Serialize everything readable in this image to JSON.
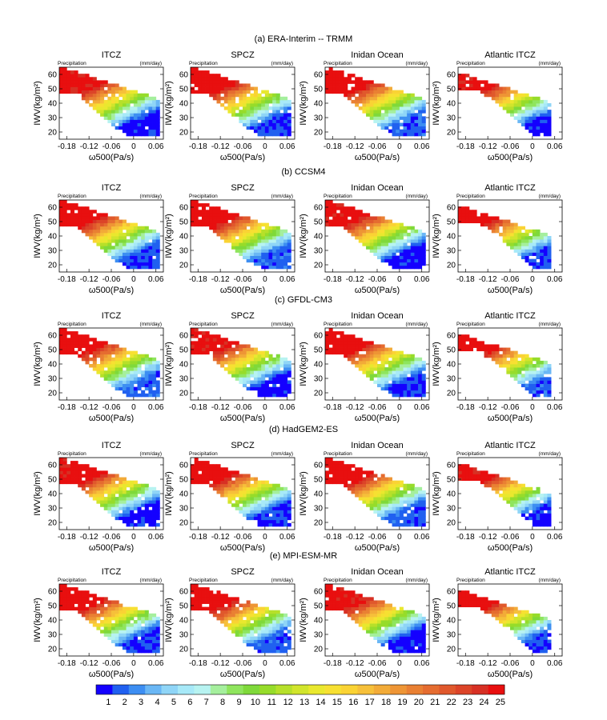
{
  "figure": {
    "panel_title": "ITCZ",
    "regions": [
      "ITCZ",
      "SPCZ",
      "Inidan Ocean",
      "Atlantic ITCZ"
    ],
    "precip_label": "Precipitation",
    "unit_label": "(mm/day)",
    "ylabel": "IWV(kg/m²)",
    "xlabel": "ω500(Pa/s)"
  },
  "chart_data": {
    "type": "heatmap",
    "rows": [
      {
        "title": "(a) ERA-Interim -- TRMM",
        "y_ticks": [
          "20",
          "30",
          "40",
          "50",
          "60"
        ]
      },
      {
        "title": "(b) CCSM4",
        "y_ticks": [
          "20",
          "30",
          "40",
          "50",
          "60"
        ]
      },
      {
        "title": "(c) GFDL-CM3",
        "y_ticks": [
          "20",
          "30",
          "40",
          "50",
          "60"
        ]
      },
      {
        "title": "(d) HadGEM2-ES",
        "y_ticks": [
          "20",
          "30",
          "40",
          "50",
          "60"
        ]
      },
      {
        "title": "(e) MPI-ESM-MR",
        "y_ticks": [
          "20",
          "30",
          "40",
          "50",
          "60"
        ]
      }
    ],
    "x_ticks": [
      "-0.18",
      "-0.12",
      "-0.06",
      "0",
      "0.06"
    ],
    "x_tick_values": [
      -0.18,
      -0.12,
      -0.06,
      0,
      0.06
    ],
    "xlim": [
      -0.2,
      0.08
    ],
    "ylim": [
      15,
      65
    ],
    "colorbar": {
      "labels": [
        "1",
        "2",
        "3",
        "4",
        "5",
        "6",
        "7",
        "8",
        "9",
        "10",
        "11",
        "12",
        "13",
        "14",
        "15",
        "16",
        "17",
        "18",
        "19",
        "20",
        "21",
        "22",
        "23",
        "24",
        "25"
      ],
      "colors": [
        "#1400ff",
        "#2060f0",
        "#3d8ef2",
        "#6ab7f5",
        "#8fd5f7",
        "#a7e9f8",
        "#b7f3f1",
        "#a5ef9d",
        "#8fe55d",
        "#7fd93a",
        "#96dc2a",
        "#b6e02a",
        "#d1e52c",
        "#e9e82e",
        "#f7e032",
        "#fad334",
        "#f6c03a",
        "#f2ab38",
        "#ee9535",
        "#e98033",
        "#e56c30",
        "#e0582c",
        "#dc4428",
        "#d73024",
        "#e80f0f"
      ]
    }
  }
}
